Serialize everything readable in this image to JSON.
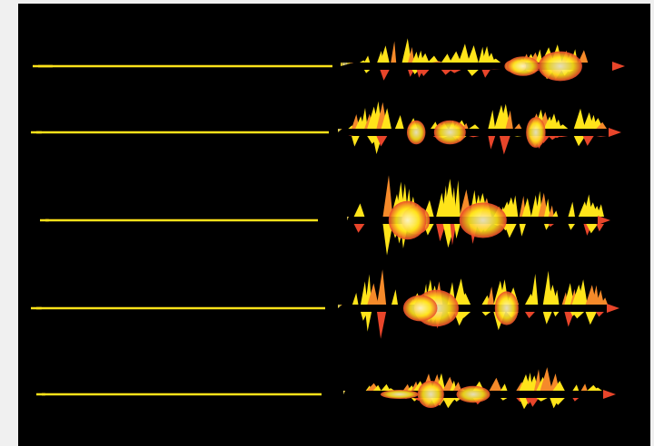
{
  "colors": {
    "page_background": "#f0f0f0",
    "panel_background": "#000000",
    "outline_stroke": "#ffe21a",
    "fill_light": "#fff3b0",
    "fill_yellow": "#ffe41a",
    "fill_orange": "#f58a2a",
    "fill_red": "#e8452a"
  },
  "icons": {
    "left_column": "sound-waveform-outline-icon",
    "right_column": "sound-waveform-halftone-icon"
  },
  "waveforms": [
    {
      "row": 1,
      "left_style": "outline",
      "right_style": "halftone"
    },
    {
      "row": 2,
      "left_style": "outline",
      "right_style": "halftone"
    },
    {
      "row": 3,
      "left_style": "outline",
      "right_style": "halftone"
    },
    {
      "row": 4,
      "left_style": "outline",
      "right_style": "halftone"
    },
    {
      "row": 5,
      "left_style": "outline",
      "right_style": "halftone"
    }
  ]
}
